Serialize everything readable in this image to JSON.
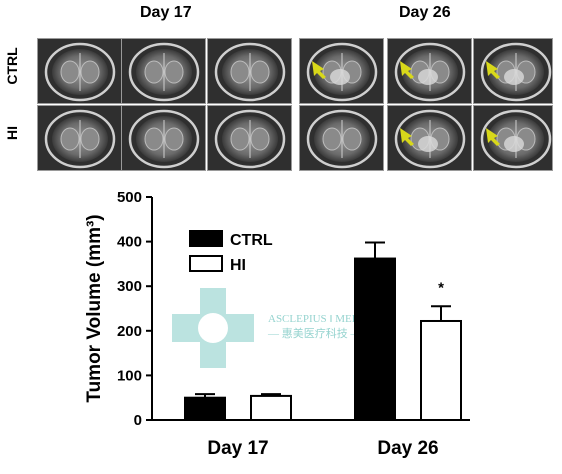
{
  "figure": {
    "top_labels": [
      "Day 17",
      "Day 26"
    ],
    "row_labels": [
      "CTRL",
      "HI"
    ],
    "arrow_color": "#d8d81a",
    "mri_panels": [
      {
        "row": 0,
        "col": 0,
        "arrow": false
      },
      {
        "row": 0,
        "col": 1,
        "arrow": false
      },
      {
        "row": 0,
        "col": 2,
        "arrow": false
      },
      {
        "row": 0,
        "col": 3,
        "arrow": true
      },
      {
        "row": 0,
        "col": 4,
        "arrow": true
      },
      {
        "row": 0,
        "col": 5,
        "arrow": true
      },
      {
        "row": 1,
        "col": 0,
        "arrow": false
      },
      {
        "row": 1,
        "col": 1,
        "arrow": false
      },
      {
        "row": 1,
        "col": 2,
        "arrow": false
      },
      {
        "row": 1,
        "col": 3,
        "arrow": false
      },
      {
        "row": 1,
        "col": 4,
        "arrow": true
      },
      {
        "row": 1,
        "col": 5,
        "arrow": true
      }
    ]
  },
  "watermark": {
    "line1": "ASCLEPIUS",
    "line2": "MEDITEC",
    "line3": "— 惠美医疗科技 —",
    "color": "#3fb0a8"
  },
  "chart_data": {
    "type": "bar",
    "categories": [
      "Day 17",
      "Day 26"
    ],
    "ylabel": "Tumor Volume (mm³)",
    "ylim": [
      0,
      500
    ],
    "yticks": [
      0,
      100,
      200,
      300,
      400,
      500
    ],
    "legend_position": "top-left",
    "significance": [
      {
        "category": "Day 26",
        "series": "HI",
        "text": "*"
      }
    ],
    "series": [
      {
        "name": "CTRL",
        "fill": "#000000",
        "values": [
          50,
          362
        ],
        "errors": [
          8,
          36
        ]
      },
      {
        "name": "HI",
        "fill": "#ffffff",
        "values": [
          54,
          222
        ],
        "errors": [
          4,
          33
        ]
      }
    ]
  }
}
